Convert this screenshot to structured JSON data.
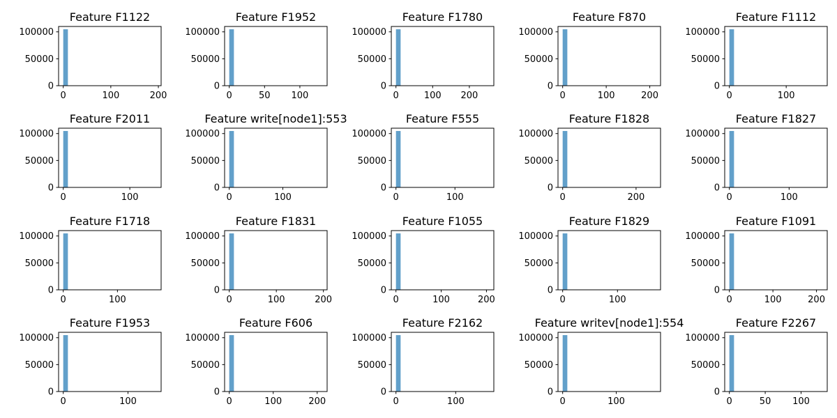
{
  "chart_data": [
    {
      "type": "bar",
      "title": "Feature F1122",
      "xlim": [
        -9.8,
        205.8
      ],
      "ylim": [
        0,
        110000
      ],
      "x_ticks": [
        0,
        100,
        200
      ],
      "y_ticks": [
        0,
        50000,
        100000
      ],
      "bins": [
        {
          "x0": 0,
          "x1": 9.8,
          "count": 104800
        }
      ]
    },
    {
      "type": "bar",
      "title": "Feature F1952",
      "xlim": [
        -6.6,
        138.6
      ],
      "ylim": [
        0,
        110000
      ],
      "x_ticks": [
        0,
        50,
        100
      ],
      "y_ticks": [
        0,
        50000,
        100000
      ],
      "bins": [
        {
          "x0": 0,
          "x1": 6.6,
          "count": 104800
        }
      ]
    },
    {
      "type": "bar",
      "title": "Feature F1780",
      "xlim": [
        -12.7,
        266.7
      ],
      "ylim": [
        0,
        110000
      ],
      "x_ticks": [
        0,
        100,
        200
      ],
      "y_ticks": [
        0,
        50000,
        100000
      ],
      "bins": [
        {
          "x0": 0,
          "x1": 12.7,
          "count": 104800
        }
      ]
    },
    {
      "type": "bar",
      "title": "Feature F870",
      "xlim": [
        -10.7,
        224.7
      ],
      "ylim": [
        0,
        110000
      ],
      "x_ticks": [
        0,
        100,
        200
      ],
      "y_ticks": [
        0,
        50000,
        100000
      ],
      "bins": [
        {
          "x0": 0,
          "x1": 10.7,
          "count": 104800
        }
      ]
    },
    {
      "type": "bar",
      "title": "Feature F1112",
      "xlim": [
        -8.2,
        172.2
      ],
      "ylim": [
        0,
        110000
      ],
      "x_ticks": [
        0,
        100
      ],
      "y_ticks": [
        0,
        50000,
        100000
      ],
      "bins": [
        {
          "x0": 0,
          "x1": 8.2,
          "count": 104800
        }
      ]
    },
    {
      "type": "bar",
      "title": "Feature F2011",
      "xlim": [
        -7.0,
        147.0
      ],
      "ylim": [
        0,
        110000
      ],
      "x_ticks": [
        0,
        100
      ],
      "y_ticks": [
        0,
        50000,
        100000
      ],
      "bins": [
        {
          "x0": 0,
          "x1": 7.0,
          "count": 104800
        }
      ]
    },
    {
      "type": "bar",
      "title": "Feature write[node1]:553",
      "xlim": [
        -8.7,
        182.7
      ],
      "ylim": [
        0,
        110000
      ],
      "x_ticks": [
        0,
        100
      ],
      "y_ticks": [
        0,
        50000,
        100000
      ],
      "bins": [
        {
          "x0": 0,
          "x1": 8.7,
          "count": 104800
        }
      ]
    },
    {
      "type": "bar",
      "title": "Feature F555",
      "xlim": [
        -7.9,
        165.9
      ],
      "ylim": [
        0,
        110000
      ],
      "x_ticks": [
        0,
        100
      ],
      "y_ticks": [
        0,
        50000,
        100000
      ],
      "bins": [
        {
          "x0": 0,
          "x1": 7.9,
          "count": 104800
        }
      ]
    },
    {
      "type": "bar",
      "title": "Feature F1828",
      "xlim": [
        -12.7,
        266.7
      ],
      "ylim": [
        0,
        110000
      ],
      "x_ticks": [
        0,
        200
      ],
      "y_ticks": [
        0,
        50000,
        100000
      ],
      "bins": [
        {
          "x0": 0,
          "x1": 12.7,
          "count": 104800
        }
      ]
    },
    {
      "type": "bar",
      "title": "Feature F1827",
      "xlim": [
        -7.8,
        163.8
      ],
      "ylim": [
        0,
        110000
      ],
      "x_ticks": [
        0,
        100
      ],
      "y_ticks": [
        0,
        50000,
        100000
      ],
      "bins": [
        {
          "x0": 0,
          "x1": 7.8,
          "count": 104800
        }
      ]
    },
    {
      "type": "bar",
      "title": "Feature F1718",
      "xlim": [
        -8.6,
        180.6
      ],
      "ylim": [
        0,
        110000
      ],
      "x_ticks": [
        0,
        100
      ],
      "y_ticks": [
        0,
        50000,
        100000
      ],
      "bins": [
        {
          "x0": 0,
          "x1": 8.6,
          "count": 104800
        }
      ]
    },
    {
      "type": "bar",
      "title": "Feature F1831",
      "xlim": [
        -9.9,
        207.9
      ],
      "ylim": [
        0,
        110000
      ],
      "x_ticks": [
        0,
        100,
        200
      ],
      "y_ticks": [
        0,
        50000,
        100000
      ],
      "bins": [
        {
          "x0": 0,
          "x1": 9.9,
          "count": 104800
        }
      ]
    },
    {
      "type": "bar",
      "title": "Feature F1055",
      "xlim": [
        -10.3,
        216.3
      ],
      "ylim": [
        0,
        110000
      ],
      "x_ticks": [
        0,
        100,
        200
      ],
      "y_ticks": [
        0,
        50000,
        100000
      ],
      "bins": [
        {
          "x0": 0,
          "x1": 10.3,
          "count": 104800
        }
      ]
    },
    {
      "type": "bar",
      "title": "Feature F1829",
      "xlim": [
        -8.5,
        178.5
      ],
      "ylim": [
        0,
        110000
      ],
      "x_ticks": [
        0,
        100
      ],
      "y_ticks": [
        0,
        50000,
        100000
      ],
      "bins": [
        {
          "x0": 0,
          "x1": 8.5,
          "count": 104800
        }
      ]
    },
    {
      "type": "bar",
      "title": "Feature F1091",
      "xlim": [
        -10.7,
        224.7
      ],
      "ylim": [
        0,
        110000
      ],
      "x_ticks": [
        0,
        100,
        200
      ],
      "y_ticks": [
        0,
        50000,
        100000
      ],
      "bins": [
        {
          "x0": 0,
          "x1": 10.7,
          "count": 104800
        }
      ]
    },
    {
      "type": "bar",
      "title": "Feature F1953",
      "xlim": [
        -7.2,
        151.2
      ],
      "ylim": [
        0,
        110000
      ],
      "x_ticks": [
        0,
        100
      ],
      "y_ticks": [
        0,
        50000,
        100000
      ],
      "bins": [
        {
          "x0": 0,
          "x1": 7.2,
          "count": 104800
        }
      ]
    },
    {
      "type": "bar",
      "title": "Feature F606",
      "xlim": [
        -10.6,
        222.6
      ],
      "ylim": [
        0,
        110000
      ],
      "x_ticks": [
        0,
        100,
        200
      ],
      "y_ticks": [
        0,
        50000,
        100000
      ],
      "bins": [
        {
          "x0": 0,
          "x1": 10.6,
          "count": 104800
        }
      ]
    },
    {
      "type": "bar",
      "title": "Feature F2162",
      "xlim": [
        -7.8,
        163.8
      ],
      "ylim": [
        0,
        110000
      ],
      "x_ticks": [
        0,
        100
      ],
      "y_ticks": [
        0,
        50000,
        100000
      ],
      "bins": [
        {
          "x0": 0,
          "x1": 7.8,
          "count": 104800
        }
      ]
    },
    {
      "type": "bar",
      "title": "Feature writev[node1]:554",
      "xlim": [
        -8.7,
        182.7
      ],
      "ylim": [
        0,
        110000
      ],
      "x_ticks": [
        0,
        100
      ],
      "y_ticks": [
        0,
        50000,
        100000
      ],
      "bins": [
        {
          "x0": 0,
          "x1": 8.7,
          "count": 104800
        }
      ]
    },
    {
      "type": "bar",
      "title": "Feature F2267",
      "xlim": [
        -6.5,
        136.5
      ],
      "ylim": [
        0,
        110000
      ],
      "x_ticks": [
        0,
        50,
        100
      ],
      "y_ticks": [
        0,
        50000,
        100000
      ],
      "bins": [
        {
          "x0": 0,
          "x1": 6.5,
          "count": 104800
        }
      ]
    }
  ],
  "style": {
    "bar_color": "#1f77b4",
    "bar_opacity": 0.7
  }
}
